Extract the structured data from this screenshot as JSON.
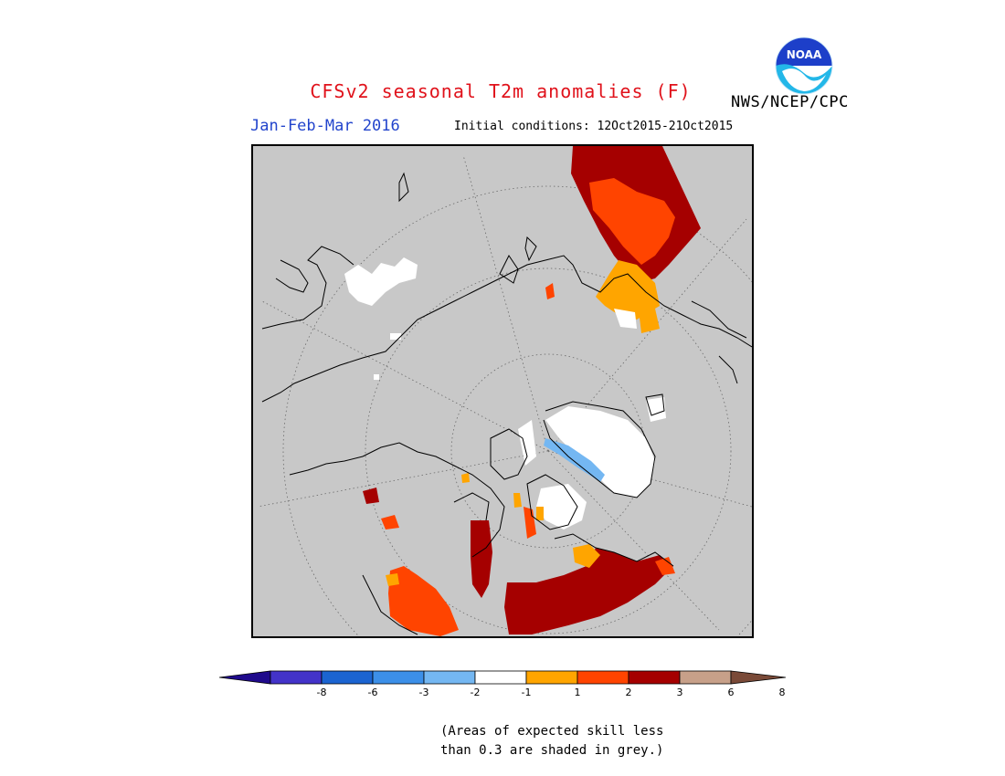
{
  "title": "CFSv2 seasonal T2m anomalies (F)",
  "agency": "NWS/NCEP/CPC",
  "logo_text": "NOAA",
  "season": "Jan-Feb-Mar 2016",
  "initial_conditions": "Initial conditions: 12Oct2015-21Oct2015",
  "legend": {
    "labels": [
      "-8",
      "-6",
      "-3",
      "-2",
      "-1",
      "1",
      "2",
      "3",
      "6",
      "8"
    ],
    "colors": [
      "#1f0a8c",
      "#4333c9",
      "#1b64d1",
      "#3c8fe8",
      "#74b7f2",
      "#ffffff",
      "#ffa500",
      "#ff4400",
      "#a50000",
      "#c7a089",
      "#7a4a38"
    ]
  },
  "note_line1": "(Areas of expected skill less",
  "note_line2": "than 0.3 are shaded in grey.)",
  "colors": {
    "title": "#e0121b",
    "season": "#2244cc",
    "masked_grey": "#c8c8c8"
  }
}
